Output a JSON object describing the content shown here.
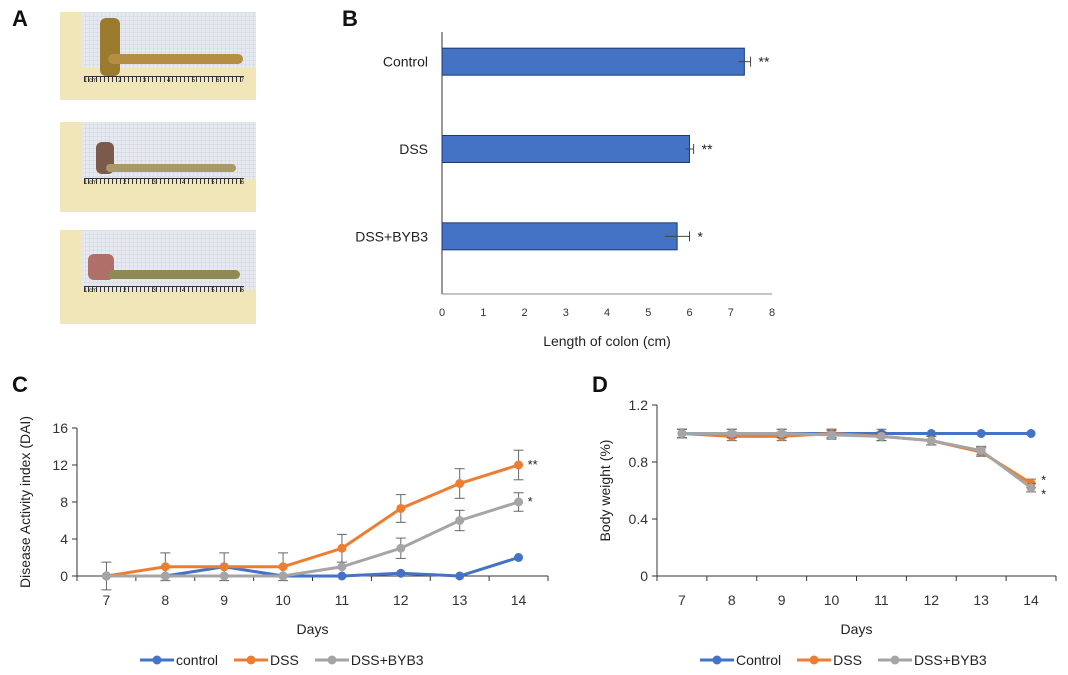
{
  "panels": {
    "a": "A",
    "b": "B",
    "c": "C",
    "d": "D"
  },
  "photos": {
    "ruler_top": [
      "1 cm",
      "2",
      "3",
      "4",
      "5",
      "6",
      "7"
    ],
    "ruler_short": [
      "1 cm",
      "2",
      "3",
      "4",
      "5",
      "6"
    ]
  },
  "chart_data": [
    {
      "id": "B",
      "type": "bar",
      "orientation": "horizontal",
      "categories": [
        "Control",
        "DSS",
        "DSS+BYB3"
      ],
      "values": [
        7.33,
        6.0,
        5.7
      ],
      "errors": [
        0.15,
        0.1,
        0.3
      ],
      "significance": [
        "**",
        "**",
        "*"
      ],
      "xlabel": "Length of colon (cm)",
      "xlim": [
        0,
        8
      ],
      "xticks": [
        0,
        1,
        2,
        3,
        4,
        5,
        6,
        7,
        8
      ],
      "color": "#4472c4"
    },
    {
      "id": "C",
      "type": "line",
      "x": [
        7,
        8,
        9,
        10,
        11,
        12,
        13,
        14
      ],
      "series": [
        {
          "name": "control",
          "color": "#4472c4",
          "values": [
            0,
            0,
            1,
            0,
            0,
            0.3,
            0,
            2
          ],
          "errors": [
            0,
            0,
            0,
            0,
            0,
            0,
            0,
            0
          ]
        },
        {
          "name": "DSS",
          "color": "#ed7d31",
          "values": [
            0,
            1,
            1,
            1,
            3,
            7.3,
            10,
            12
          ],
          "errors": [
            1.5,
            1.5,
            1.5,
            1.5,
            1.5,
            1.5,
            1.6,
            1.6
          ]
        },
        {
          "name": "DSS+BYB3",
          "color": "#a5a5a5",
          "values": [
            0,
            0,
            0,
            0,
            1,
            3,
            6,
            8
          ],
          "errors": [
            0,
            0,
            0,
            0,
            0,
            1.1,
            1.1,
            1.0
          ]
        }
      ],
      "significance": {
        "DSS": "**",
        "DSS+BYB3": "*"
      },
      "xlabel": "Days",
      "ylabel": "Disease Activity index (DAI)",
      "ylim": [
        0,
        16
      ],
      "yticks": [
        0,
        4,
        8,
        12,
        16
      ],
      "legend": "bottom"
    },
    {
      "id": "D",
      "type": "line",
      "x": [
        7,
        8,
        9,
        10,
        11,
        12,
        13,
        14
      ],
      "series": [
        {
          "name": "Control",
          "color": "#4472c4",
          "values": [
            1,
            1,
            1,
            1,
            1,
            1,
            1,
            1
          ],
          "errors": [
            0.03,
            0.03,
            0.03,
            0.03,
            0.03,
            0,
            0,
            0
          ]
        },
        {
          "name": "DSS",
          "color": "#ed7d31",
          "values": [
            1,
            0.98,
            0.98,
            1,
            0.98,
            0.95,
            0.87,
            0.65
          ],
          "errors": [
            0.03,
            0.03,
            0.03,
            0.03,
            0.03,
            0.03,
            0.03,
            0.03
          ]
        },
        {
          "name": "DSS+BYB3",
          "color": "#a5a5a5",
          "values": [
            1,
            1,
            1,
            0.99,
            0.98,
            0.95,
            0.88,
            0.62
          ],
          "errors": [
            0.03,
            0.03,
            0.03,
            0.03,
            0.03,
            0.03,
            0.03,
            0.03
          ]
        }
      ],
      "significance": {
        "DSS": "*",
        "DSS+BYB3": "*"
      },
      "xlabel": "Days",
      "ylabel": "Body weight (%)",
      "ylim": [
        0,
        1.2
      ],
      "yticks": [
        0,
        0.4,
        0.8,
        1.2
      ],
      "ytick_labels": [
        "0",
        "0.4",
        "0.8",
        "1.2"
      ],
      "legend": "bottom"
    }
  ]
}
